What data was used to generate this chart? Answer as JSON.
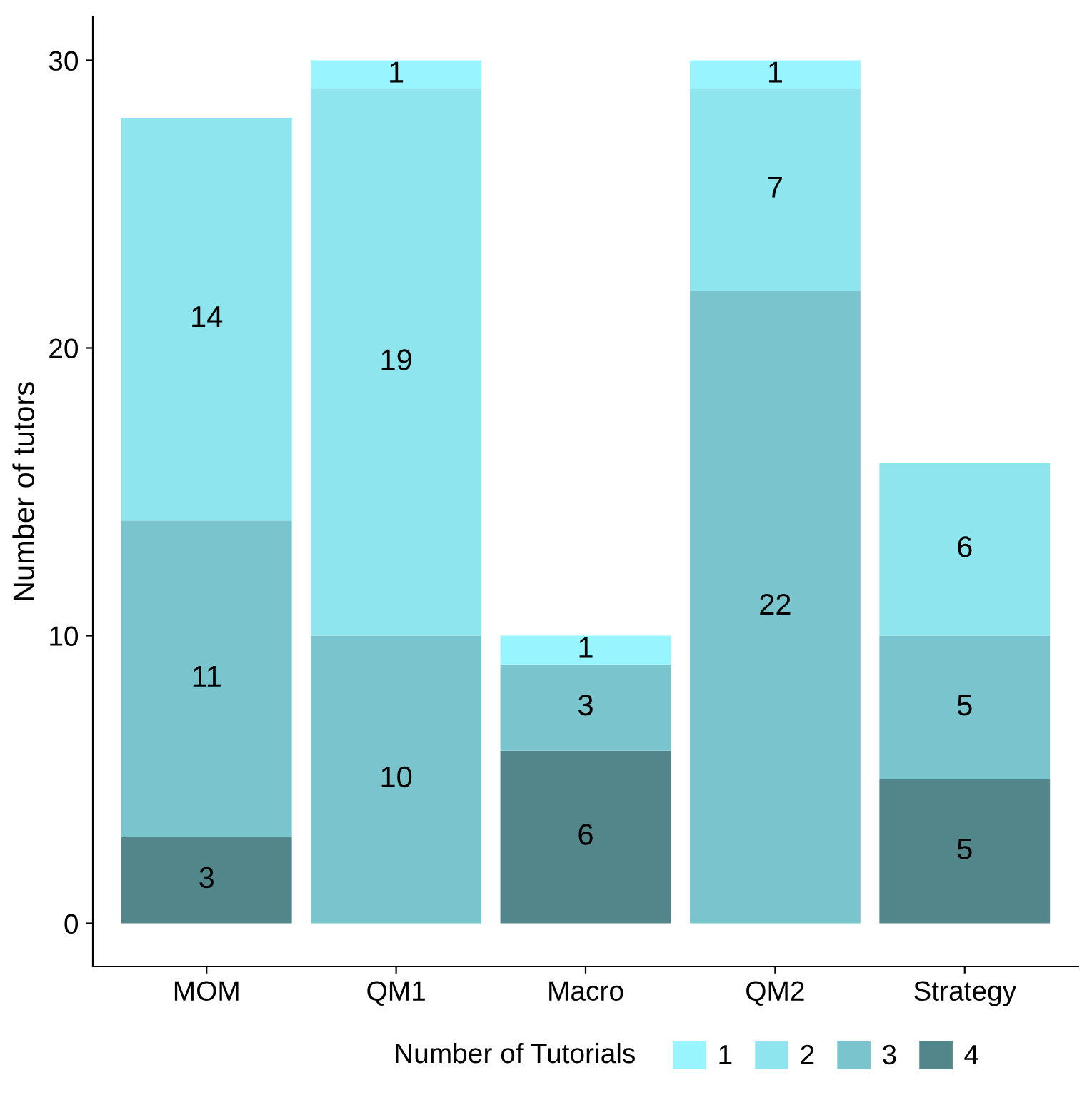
{
  "chart_data": {
    "type": "bar",
    "stacked": true,
    "ylabel": "Number of tutors",
    "legend_title": "Number of Tutorials",
    "categories": [
      "MOM",
      "QM1",
      "Macro",
      "QM2",
      "Strategy"
    ],
    "series": [
      {
        "name": "4",
        "color": "#53868b",
        "values": [
          3,
          null,
          6,
          null,
          5
        ]
      },
      {
        "name": "3",
        "color": "#7ac5cd",
        "values": [
          11,
          10,
          3,
          22,
          5
        ]
      },
      {
        "name": "2",
        "color": "#8ee5ee",
        "values": [
          14,
          19,
          null,
          7,
          6
        ]
      },
      {
        "name": "1",
        "color": "#98f5ff",
        "values": [
          null,
          1,
          1,
          1,
          null
        ]
      }
    ],
    "ylim": [
      -1.5,
      31.5
    ],
    "yticks": [
      0,
      10,
      20,
      30
    ],
    "grid": false,
    "legend": "bottom",
    "data_labels": true
  }
}
